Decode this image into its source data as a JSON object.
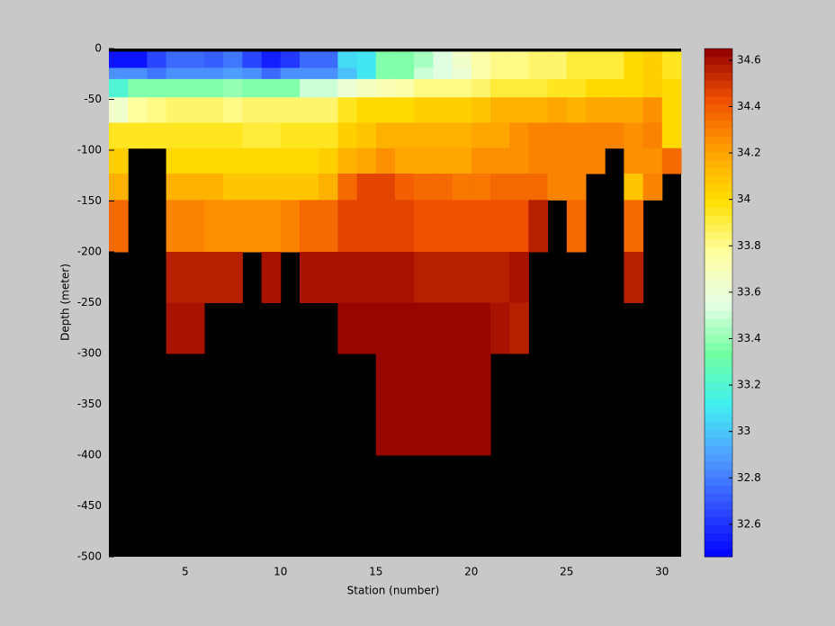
{
  "chart_data": {
    "type": "heatmap",
    "xlabel": "Station (number)",
    "ylabel": "Depth (meter)",
    "x_edges": [
      1,
      2,
      3,
      4,
      5,
      6,
      7,
      8,
      9,
      10,
      11,
      12,
      13,
      14,
      15,
      16,
      17,
      18,
      19,
      20,
      21,
      22,
      23,
      24,
      25,
      26,
      27,
      28,
      29,
      30,
      31
    ],
    "y_edges": [
      -3,
      -19,
      -30,
      -48,
      -73,
      -98,
      -123,
      -149,
      -200,
      -250,
      -300,
      -400
    ],
    "values": [
      [
        32.5,
        32.5,
        32.65,
        32.75,
        32.75,
        32.7,
        32.8,
        32.65,
        32.55,
        32.6,
        32.75,
        32.75,
        33.05,
        33.1,
        33.35,
        33.35,
        33.45,
        33.55,
        33.65,
        33.75,
        33.8,
        33.8,
        33.85,
        33.85,
        33.9,
        33.9,
        33.9,
        34.0,
        34.05,
        33.95
      ],
      [
        32.85,
        32.85,
        32.8,
        32.85,
        32.85,
        32.85,
        32.9,
        32.85,
        32.75,
        32.85,
        32.85,
        32.85,
        33.0,
        33.1,
        33.35,
        33.35,
        33.5,
        33.55,
        33.6,
        33.75,
        33.8,
        33.8,
        33.85,
        33.85,
        33.9,
        33.9,
        33.9,
        34.0,
        34.05,
        33.95
      ],
      [
        33.2,
        33.35,
        33.35,
        33.35,
        33.35,
        33.35,
        33.4,
        33.35,
        33.35,
        33.38,
        33.5,
        33.5,
        33.62,
        33.68,
        33.7,
        33.75,
        33.8,
        33.8,
        33.82,
        33.85,
        33.9,
        33.9,
        33.9,
        33.95,
        33.95,
        34.0,
        34.0,
        34.0,
        34.05,
        34.0
      ],
      [
        33.65,
        33.78,
        33.8,
        33.85,
        33.85,
        33.85,
        33.8,
        33.85,
        33.85,
        33.85,
        33.85,
        33.85,
        33.95,
        34.0,
        34.0,
        34.0,
        34.05,
        34.05,
        34.05,
        34.1,
        34.15,
        34.15,
        34.15,
        34.2,
        34.15,
        34.2,
        34.2,
        34.2,
        34.25,
        34.0
      ],
      [
        33.95,
        33.95,
        33.95,
        33.95,
        33.95,
        33.95,
        33.95,
        33.9,
        33.9,
        33.95,
        33.95,
        33.95,
        34.05,
        34.1,
        34.15,
        34.15,
        34.15,
        34.15,
        34.15,
        34.2,
        34.2,
        34.25,
        34.3,
        34.3,
        34.3,
        34.3,
        34.3,
        34.25,
        34.3,
        34.0
      ],
      [
        34.05,
        null,
        null,
        34.0,
        34.0,
        34.02,
        34.02,
        34.02,
        34.02,
        34.02,
        34.02,
        34.05,
        34.15,
        34.2,
        34.25,
        34.2,
        34.2,
        34.2,
        34.2,
        34.25,
        34.25,
        34.25,
        34.3,
        34.3,
        34.3,
        34.3,
        null,
        34.25,
        34.25,
        34.35
      ],
      [
        34.15,
        null,
        null,
        34.15,
        34.15,
        34.15,
        34.08,
        34.08,
        34.08,
        34.08,
        34.08,
        34.15,
        34.35,
        34.45,
        34.45,
        34.4,
        34.35,
        34.35,
        34.32,
        34.32,
        34.35,
        34.35,
        34.35,
        34.3,
        34.3,
        null,
        null,
        34.1,
        34.3,
        null
      ],
      [
        34.35,
        null,
        null,
        34.3,
        34.3,
        34.25,
        34.25,
        34.25,
        34.25,
        34.3,
        34.35,
        34.35,
        34.45,
        34.45,
        34.45,
        34.45,
        34.42,
        34.42,
        34.42,
        34.42,
        34.42,
        34.42,
        34.55,
        null,
        34.35,
        null,
        null,
        34.35,
        null,
        null
      ],
      [
        null,
        null,
        null,
        34.55,
        34.55,
        34.55,
        34.55,
        null,
        34.6,
        null,
        34.6,
        34.6,
        34.6,
        34.6,
        34.6,
        34.6,
        34.55,
        34.55,
        34.55,
        34.55,
        34.55,
        34.6,
        null,
        null,
        null,
        null,
        null,
        34.55,
        null,
        null
      ],
      [
        null,
        null,
        null,
        34.6,
        34.6,
        null,
        null,
        null,
        null,
        null,
        null,
        null,
        34.63,
        34.63,
        34.63,
        34.63,
        34.63,
        34.63,
        34.63,
        34.63,
        34.6,
        34.58,
        null,
        null,
        null,
        null,
        null,
        null,
        null,
        null
      ],
      [
        null,
        null,
        null,
        null,
        null,
        null,
        null,
        null,
        null,
        null,
        null,
        null,
        null,
        null,
        34.64,
        34.64,
        34.64,
        34.64,
        34.64,
        34.64,
        null,
        null,
        null,
        null,
        null,
        null,
        null,
        null,
        null,
        null
      ]
    ],
    "xlim": [
      1,
      31
    ],
    "ylim": [
      -500,
      0
    ],
    "xticks": [
      5,
      10,
      15,
      20,
      25,
      30
    ],
    "yticks": [
      0,
      -50,
      -100,
      -150,
      -200,
      -250,
      -300,
      -350,
      -400,
      -450,
      -500
    ],
    "clim": [
      32.46,
      34.65
    ],
    "cticks": [
      32.6,
      32.8,
      33,
      33.2,
      33.4,
      33.6,
      33.8,
      34,
      34.2,
      34.4,
      34.6
    ],
    "colormap": [
      "#0000ff",
      "#3050ff",
      "#50a0ff",
      "#40f0f0",
      "#70ffa0",
      "#e8ffe8",
      "#ffffa0",
      "#ffe000",
      "#ffa000",
      "#f05000",
      "#900000"
    ],
    "colormap_steps": 64,
    "background": "#000000"
  }
}
